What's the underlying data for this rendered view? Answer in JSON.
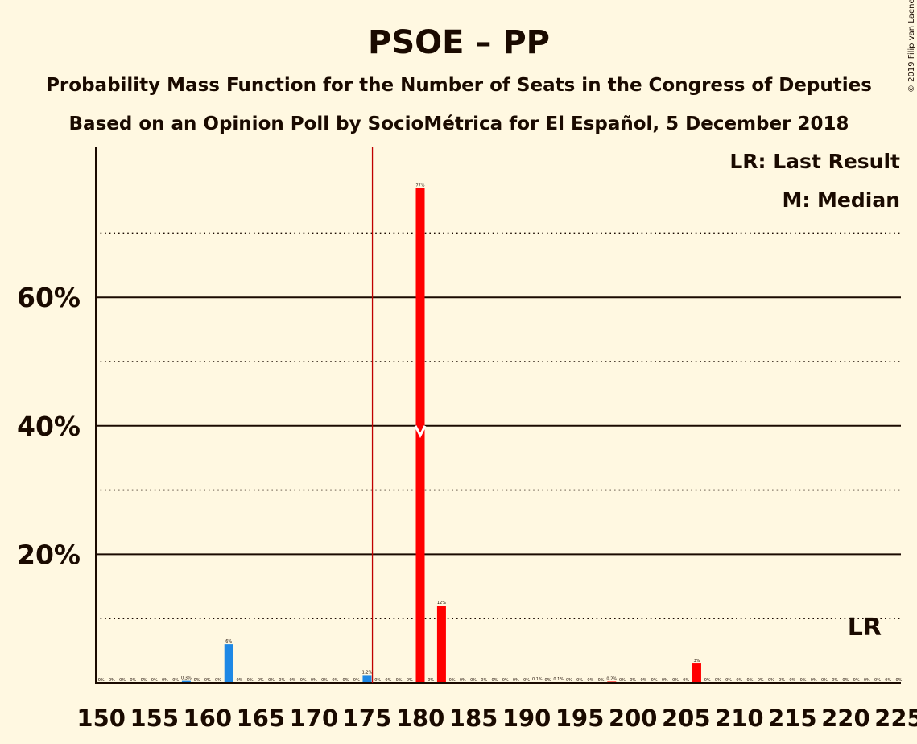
{
  "title": "PSOE – PP",
  "subtitle1": "Probability Mass Function for the Number of Seats in the Congress of Deputies",
  "subtitle2": "Based on an Opinion Poll by SocioMétrica for El Español, 5 December 2018",
  "copyright": "© 2019 Filip van Laenen",
  "legend": {
    "lr": "LR: Last Result",
    "m": "M: Median"
  },
  "lr_marker": "LR",
  "colors": {
    "background": "#FFF8E1",
    "bar": "#FF0000",
    "bar_below_majority": "#1E88E5",
    "majority_line": "#C00000",
    "text": "#1A0A00"
  },
  "chart_data": {
    "type": "bar",
    "x_range": [
      150,
      225
    ],
    "ylim": [
      0,
      0.83
    ],
    "yticks": [
      0.2,
      0.4,
      0.6
    ],
    "ytick_labels": [
      "20%",
      "40%",
      "60%"
    ],
    "minor_gridlines": [
      0.1,
      0.3,
      0.5,
      0.7
    ],
    "xticks": [
      150,
      155,
      160,
      165,
      170,
      175,
      180,
      185,
      190,
      195,
      200,
      205,
      210,
      215,
      220,
      225
    ],
    "xtick_labels": [
      "150",
      "155",
      "160",
      "165",
      "170",
      "175",
      "180",
      "185",
      "190",
      "195",
      "200",
      "205",
      "210",
      "215",
      "220",
      "225"
    ],
    "majority": 176,
    "median": 180,
    "last_result": 222,
    "bars": [
      {
        "x": 150,
        "value": 0,
        "label": "0%"
      },
      {
        "x": 151,
        "value": 0,
        "label": "0%"
      },
      {
        "x": 152,
        "value": 0,
        "label": "0%"
      },
      {
        "x": 153,
        "value": 0,
        "label": "0%"
      },
      {
        "x": 154,
        "value": 0,
        "label": "0%"
      },
      {
        "x": 155,
        "value": 0,
        "label": "0%"
      },
      {
        "x": 156,
        "value": 0,
        "label": "0%"
      },
      {
        "x": 157,
        "value": 0,
        "label": "0%"
      },
      {
        "x": 158,
        "value": 0.003,
        "label": "0.3%"
      },
      {
        "x": 159,
        "value": 0,
        "label": "0%"
      },
      {
        "x": 160,
        "value": 0,
        "label": "0%"
      },
      {
        "x": 161,
        "value": 0,
        "label": "0%"
      },
      {
        "x": 162,
        "value": 0.06,
        "label": "6%"
      },
      {
        "x": 163,
        "value": 0,
        "label": "0%"
      },
      {
        "x": 164,
        "value": 0,
        "label": "0%"
      },
      {
        "x": 165,
        "value": 0,
        "label": "0%"
      },
      {
        "x": 166,
        "value": 0,
        "label": "0%"
      },
      {
        "x": 167,
        "value": 0,
        "label": "0%"
      },
      {
        "x": 168,
        "value": 0,
        "label": "0%"
      },
      {
        "x": 169,
        "value": 0,
        "label": "0%"
      },
      {
        "x": 170,
        "value": 0,
        "label": "0%"
      },
      {
        "x": 171,
        "value": 0,
        "label": "0%"
      },
      {
        "x": 172,
        "value": 0,
        "label": "0%"
      },
      {
        "x": 173,
        "value": 0,
        "label": "0%"
      },
      {
        "x": 174,
        "value": 0,
        "label": "0%"
      },
      {
        "x": 175,
        "value": 0.012,
        "label": "1.2%"
      },
      {
        "x": 176,
        "value": 0,
        "label": "0%"
      },
      {
        "x": 177,
        "value": 0,
        "label": "0%"
      },
      {
        "x": 178,
        "value": 0,
        "label": "0%"
      },
      {
        "x": 179,
        "value": 0,
        "label": "0%"
      },
      {
        "x": 180,
        "value": 0.77,
        "label": "77%"
      },
      {
        "x": 181,
        "value": 0,
        "label": "0%"
      },
      {
        "x": 182,
        "value": 0.12,
        "label": "12%"
      },
      {
        "x": 183,
        "value": 0,
        "label": "0%"
      },
      {
        "x": 184,
        "value": 0,
        "label": "0%"
      },
      {
        "x": 185,
        "value": 0,
        "label": "0%"
      },
      {
        "x": 186,
        "value": 0,
        "label": "0%"
      },
      {
        "x": 187,
        "value": 0,
        "label": "0%"
      },
      {
        "x": 188,
        "value": 0,
        "label": "0%"
      },
      {
        "x": 189,
        "value": 0,
        "label": "0%"
      },
      {
        "x": 190,
        "value": 0,
        "label": "0%"
      },
      {
        "x": 191,
        "value": 0.001,
        "label": "0.1%"
      },
      {
        "x": 192,
        "value": 0,
        "label": "0%"
      },
      {
        "x": 193,
        "value": 0.001,
        "label": "0.1%"
      },
      {
        "x": 194,
        "value": 0,
        "label": "0%"
      },
      {
        "x": 195,
        "value": 0,
        "label": "0%"
      },
      {
        "x": 196,
        "value": 0,
        "label": "0%"
      },
      {
        "x": 197,
        "value": 0,
        "label": "0%"
      },
      {
        "x": 198,
        "value": 0.002,
        "label": "0.2%"
      },
      {
        "x": 199,
        "value": 0,
        "label": "0%"
      },
      {
        "x": 200,
        "value": 0,
        "label": "0%"
      },
      {
        "x": 201,
        "value": 0,
        "label": "0%"
      },
      {
        "x": 202,
        "value": 0,
        "label": "0%"
      },
      {
        "x": 203,
        "value": 0,
        "label": "0%"
      },
      {
        "x": 204,
        "value": 0,
        "label": "0%"
      },
      {
        "x": 205,
        "value": 0,
        "label": "0%"
      },
      {
        "x": 206,
        "value": 0.03,
        "label": "3%"
      },
      {
        "x": 207,
        "value": 0,
        "label": "0%"
      },
      {
        "x": 208,
        "value": 0,
        "label": "0%"
      },
      {
        "x": 209,
        "value": 0,
        "label": "0%"
      },
      {
        "x": 210,
        "value": 0,
        "label": "0%"
      },
      {
        "x": 211,
        "value": 0,
        "label": "0%"
      },
      {
        "x": 212,
        "value": 0,
        "label": "0%"
      },
      {
        "x": 213,
        "value": 0,
        "label": "0%"
      },
      {
        "x": 214,
        "value": 0,
        "label": "0%"
      },
      {
        "x": 215,
        "value": 0,
        "label": "0%"
      },
      {
        "x": 216,
        "value": 0,
        "label": "0%"
      },
      {
        "x": 217,
        "value": 0,
        "label": "0%"
      },
      {
        "x": 218,
        "value": 0,
        "label": "0%"
      },
      {
        "x": 219,
        "value": 0,
        "label": "0%"
      },
      {
        "x": 220,
        "value": 0,
        "label": "0%"
      },
      {
        "x": 221,
        "value": 0,
        "label": "0%"
      },
      {
        "x": 222,
        "value": 0,
        "label": "0%"
      },
      {
        "x": 223,
        "value": 0,
        "label": "0%"
      },
      {
        "x": 224,
        "value": 0,
        "label": "0%"
      },
      {
        "x": 225,
        "value": 0,
        "label": "0%"
      }
    ]
  }
}
